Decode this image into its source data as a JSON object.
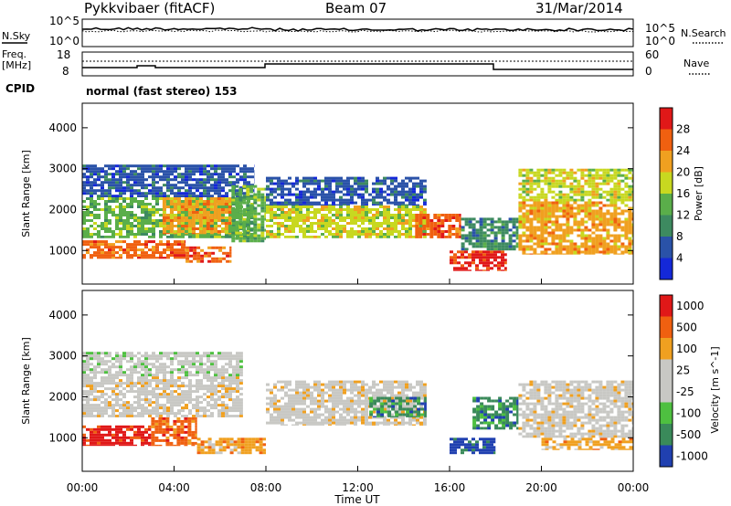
{
  "header": {
    "radar": "Pykkvibaer (fitACF)",
    "beam": "Beam 07",
    "date": "31/Mar/2014"
  },
  "noise_panel": {
    "left_label": "N.Sky",
    "right_label": "N.Search",
    "left_ticks": [
      "10^5",
      "10^0"
    ],
    "right_ticks": [
      "10^5",
      "10^0"
    ]
  },
  "freq_panel": {
    "left_label_1": "Freq.",
    "left_label_2": "[MHz]",
    "right_label": "Nave",
    "left_ticks": [
      "18",
      "8"
    ],
    "right_ticks": [
      "60",
      "0"
    ],
    "cpid_label": "CPID",
    "cpid_value": "normal (fast stereo) 153"
  },
  "x_axis": {
    "label": "Time UT",
    "ticks": [
      "00:00",
      "04:00",
      "08:00",
      "12:00",
      "16:00",
      "20:00",
      "00:00"
    ]
  },
  "colors": {
    "power": [
      "#1428d8",
      "#2a52a8",
      "#3d8a60",
      "#5aae4a",
      "#c8d820",
      "#f0a020",
      "#f06010",
      "#e01818"
    ],
    "velocity": [
      "#2040b0",
      "#3a8a5a",
      "#4ec040",
      "#c8c8c4",
      "#c8c8c4",
      "#f0a020",
      "#f06010",
      "#e01818"
    ]
  },
  "chart_data": [
    {
      "type": "heatmap",
      "name": "Power",
      "ylabel": "Slant Range [km]",
      "xlabel": "Time UT",
      "x_range_hours": [
        0,
        24
      ],
      "ylim": [
        180,
        4600
      ],
      "y_ticks": [
        1000,
        2000,
        3000,
        4000
      ],
      "colorbar": {
        "label": "Power [dB]",
        "ticks": [
          "4",
          "8",
          "12",
          "16",
          "20",
          "24",
          "28"
        ],
        "range": [
          0,
          32
        ]
      },
      "regions": [
        {
          "t0": 0.0,
          "t1": 4.5,
          "r0": 800,
          "r1": 1250,
          "level": 6
        },
        {
          "t0": 0.0,
          "t1": 7.5,
          "r0": 1300,
          "r1": 2300,
          "level": 3
        },
        {
          "t0": 0.0,
          "t1": 7.5,
          "r0": 2300,
          "r1": 3100,
          "level": 1
        },
        {
          "t0": 3.5,
          "t1": 6.5,
          "r0": 1400,
          "r1": 2300,
          "level": 5
        },
        {
          "t0": 4.5,
          "t1": 6.5,
          "r0": 700,
          "r1": 1100,
          "level": 6
        },
        {
          "t0": 6.5,
          "t1": 8.0,
          "r0": 1200,
          "r1": 2600,
          "level": 3
        },
        {
          "t0": 8.0,
          "t1": 15.0,
          "r0": 1300,
          "r1": 2100,
          "level": 4
        },
        {
          "t0": 8.0,
          "t1": 15.0,
          "r0": 2100,
          "r1": 2800,
          "level": 1
        },
        {
          "t0": 14.5,
          "t1": 16.5,
          "r0": 1300,
          "r1": 1900,
          "level": 6
        },
        {
          "t0": 16.0,
          "t1": 18.5,
          "r0": 500,
          "r1": 1000,
          "level": 7
        },
        {
          "t0": 16.5,
          "t1": 19.0,
          "r0": 1000,
          "r1": 1800,
          "level": 2
        },
        {
          "t0": 19.0,
          "t1": 24.0,
          "r0": 900,
          "r1": 2200,
          "level": 5
        },
        {
          "t0": 19.0,
          "t1": 24.0,
          "r0": 2200,
          "r1": 3000,
          "level": 4
        }
      ]
    },
    {
      "type": "heatmap",
      "name": "Velocity",
      "ylabel": "Slant Range [km]",
      "xlabel": "Time UT",
      "x_range_hours": [
        0,
        24
      ],
      "ylim": [
        180,
        4600
      ],
      "y_ticks": [
        1000,
        2000,
        3000,
        4000
      ],
      "colorbar": {
        "label": "Velocity [m s^-1]",
        "ticks": [
          "1000",
          "500",
          "100",
          "25",
          "-25",
          "-100",
          "-500",
          "-1000"
        ]
      },
      "regions": [
        {
          "t0": 0.0,
          "t1": 3.0,
          "r0": 800,
          "r1": 1300,
          "level": 7
        },
        {
          "t0": 3.0,
          "t1": 5.0,
          "r0": 800,
          "r1": 1500,
          "level": 6
        },
        {
          "t0": 0.0,
          "t1": 7.0,
          "r0": 1500,
          "r1": 2500,
          "level": 4
        },
        {
          "t0": 0.0,
          "t1": 7.0,
          "r0": 2500,
          "r1": 3100,
          "level": 3
        },
        {
          "t0": 5.0,
          "t1": 8.0,
          "r0": 600,
          "r1": 1000,
          "level": 5
        },
        {
          "t0": 8.0,
          "t1": 15.0,
          "r0": 1300,
          "r1": 2400,
          "level": 4
        },
        {
          "t0": 12.5,
          "t1": 15.0,
          "r0": 1500,
          "r1": 2000,
          "level": 1
        },
        {
          "t0": 16.0,
          "t1": 18.0,
          "r0": 600,
          "r1": 1000,
          "level": 0
        },
        {
          "t0": 17.0,
          "t1": 19.0,
          "r0": 1200,
          "r1": 2000,
          "level": 1
        },
        {
          "t0": 19.0,
          "t1": 24.0,
          "r0": 1000,
          "r1": 2400,
          "level": 4
        },
        {
          "t0": 20.0,
          "t1": 24.0,
          "r0": 700,
          "r1": 1000,
          "level": 5
        }
      ]
    }
  ]
}
